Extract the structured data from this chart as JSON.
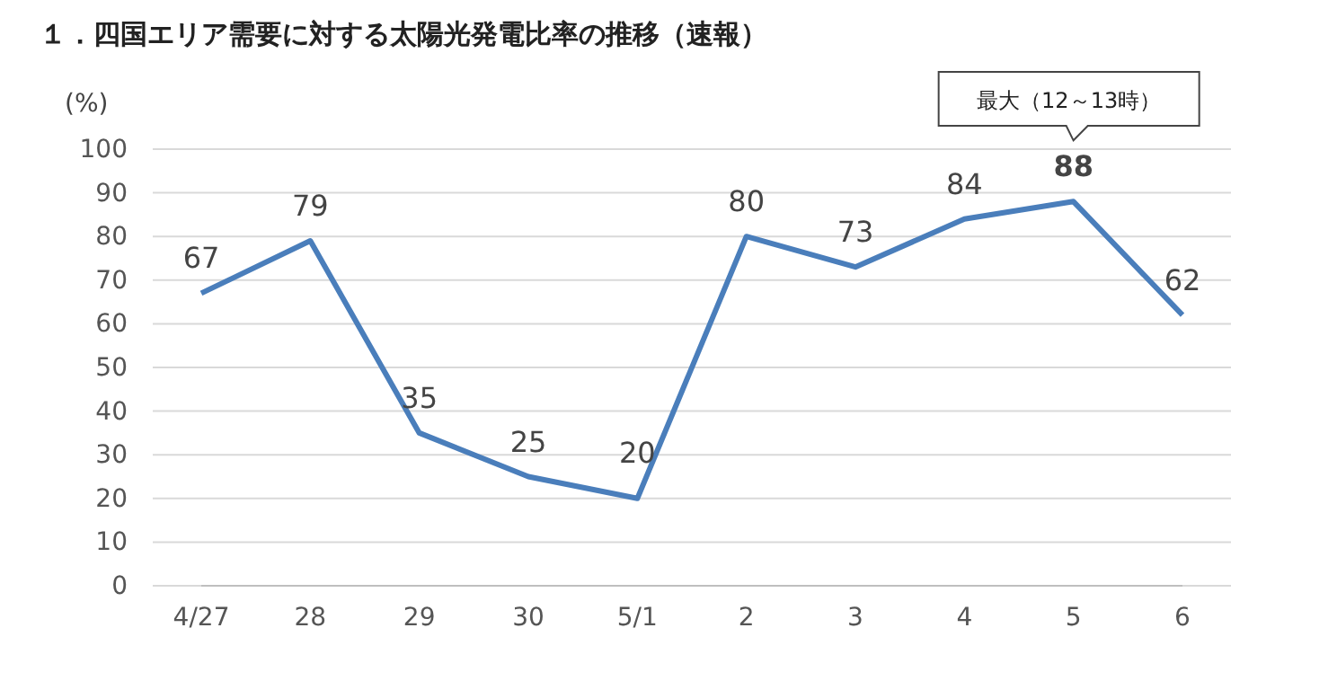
{
  "chart_data": {
    "type": "line",
    "title": "１．四国エリア需要に対する太陽光発電比率の推移（速報）",
    "ylabel": "(%)",
    "categories": [
      "4/27",
      "28",
      "29",
      "30",
      "5/1",
      "2",
      "3",
      "4",
      "5",
      "6"
    ],
    "series": [
      {
        "color": "#4a7ebb",
        "values": [
          67,
          79,
          35,
          25,
          20,
          80,
          73,
          84,
          88,
          62
        ]
      }
    ],
    "ylim": [
      0,
      100
    ],
    "yticks": [
      0,
      10,
      20,
      30,
      40,
      50,
      60,
      70,
      80,
      90,
      100
    ],
    "grid": "y",
    "data_labels": true,
    "marker": "none",
    "line_style": "solid",
    "annotations": [
      "最大（12～13時）"
    ]
  }
}
